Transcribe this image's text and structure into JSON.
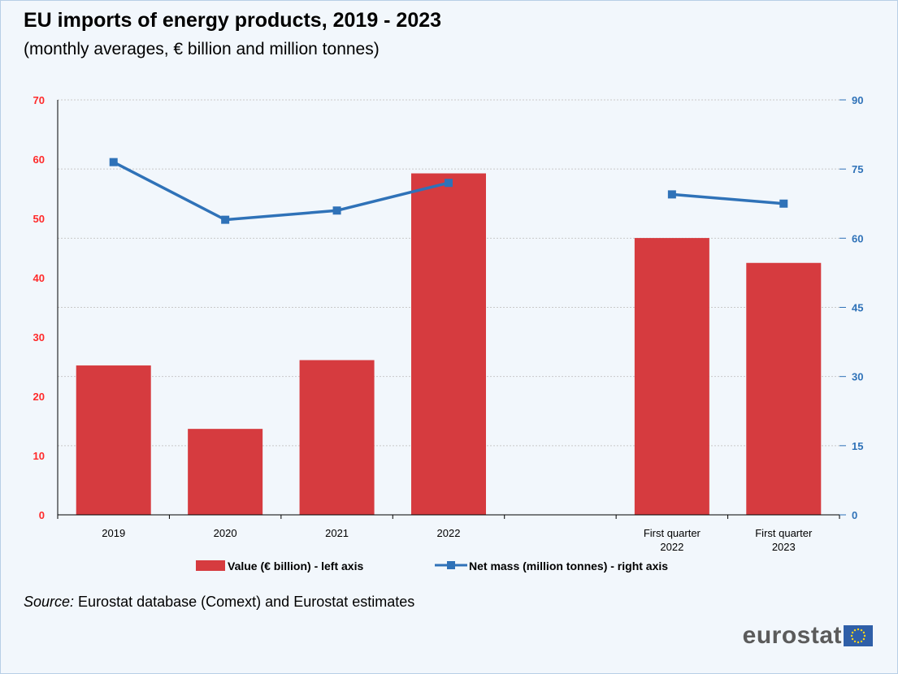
{
  "title": "EU imports of energy products, 2019 - 2023",
  "subtitle": "(monthly averages, € billion and million tonnes)",
  "source_label": "Source:",
  "source_text": " Eurostat database (Comext) and Eurostat estimates",
  "logo_text": "eurostat",
  "colors": {
    "bar": "#d63b3f",
    "line": "#2f72b8",
    "left_axis": "#ff2a2a",
    "right_axis": "#2f72b8"
  },
  "chart_data": {
    "type": "bar",
    "title": "EU imports of energy products, 2019 - 2023",
    "subtitle": "(monthly averages, € billion and million tonnes)",
    "categories": [
      "2019",
      "2020",
      "2021",
      "2022",
      "",
      "First quarter 2022",
      "First quarter 2023"
    ],
    "category_lines": [
      [
        "2019"
      ],
      [
        "2020"
      ],
      [
        "2021"
      ],
      [
        "2022"
      ],
      [],
      [
        "First quarter",
        "2022"
      ],
      [
        "First quarter",
        "2023"
      ]
    ],
    "series": [
      {
        "name": "Value (€ billion) - left axis",
        "type": "bar",
        "axis": "left",
        "values": [
          25.2,
          14.5,
          26.1,
          57.6,
          null,
          46.7,
          42.5
        ]
      },
      {
        "name": "Net mass (million tonnes) - right axis",
        "type": "line",
        "axis": "right",
        "values": [
          76.5,
          64.0,
          66.0,
          72.0,
          null,
          69.5,
          67.5
        ]
      }
    ],
    "y_left": {
      "min": 0,
      "max": 70,
      "ticks": [
        0,
        10,
        20,
        30,
        40,
        50,
        60,
        70
      ]
    },
    "y_right": {
      "min": 0,
      "max": 90,
      "ticks": [
        0,
        15,
        30,
        45,
        60,
        75,
        90
      ]
    },
    "grid": true,
    "legend": "bottom"
  }
}
